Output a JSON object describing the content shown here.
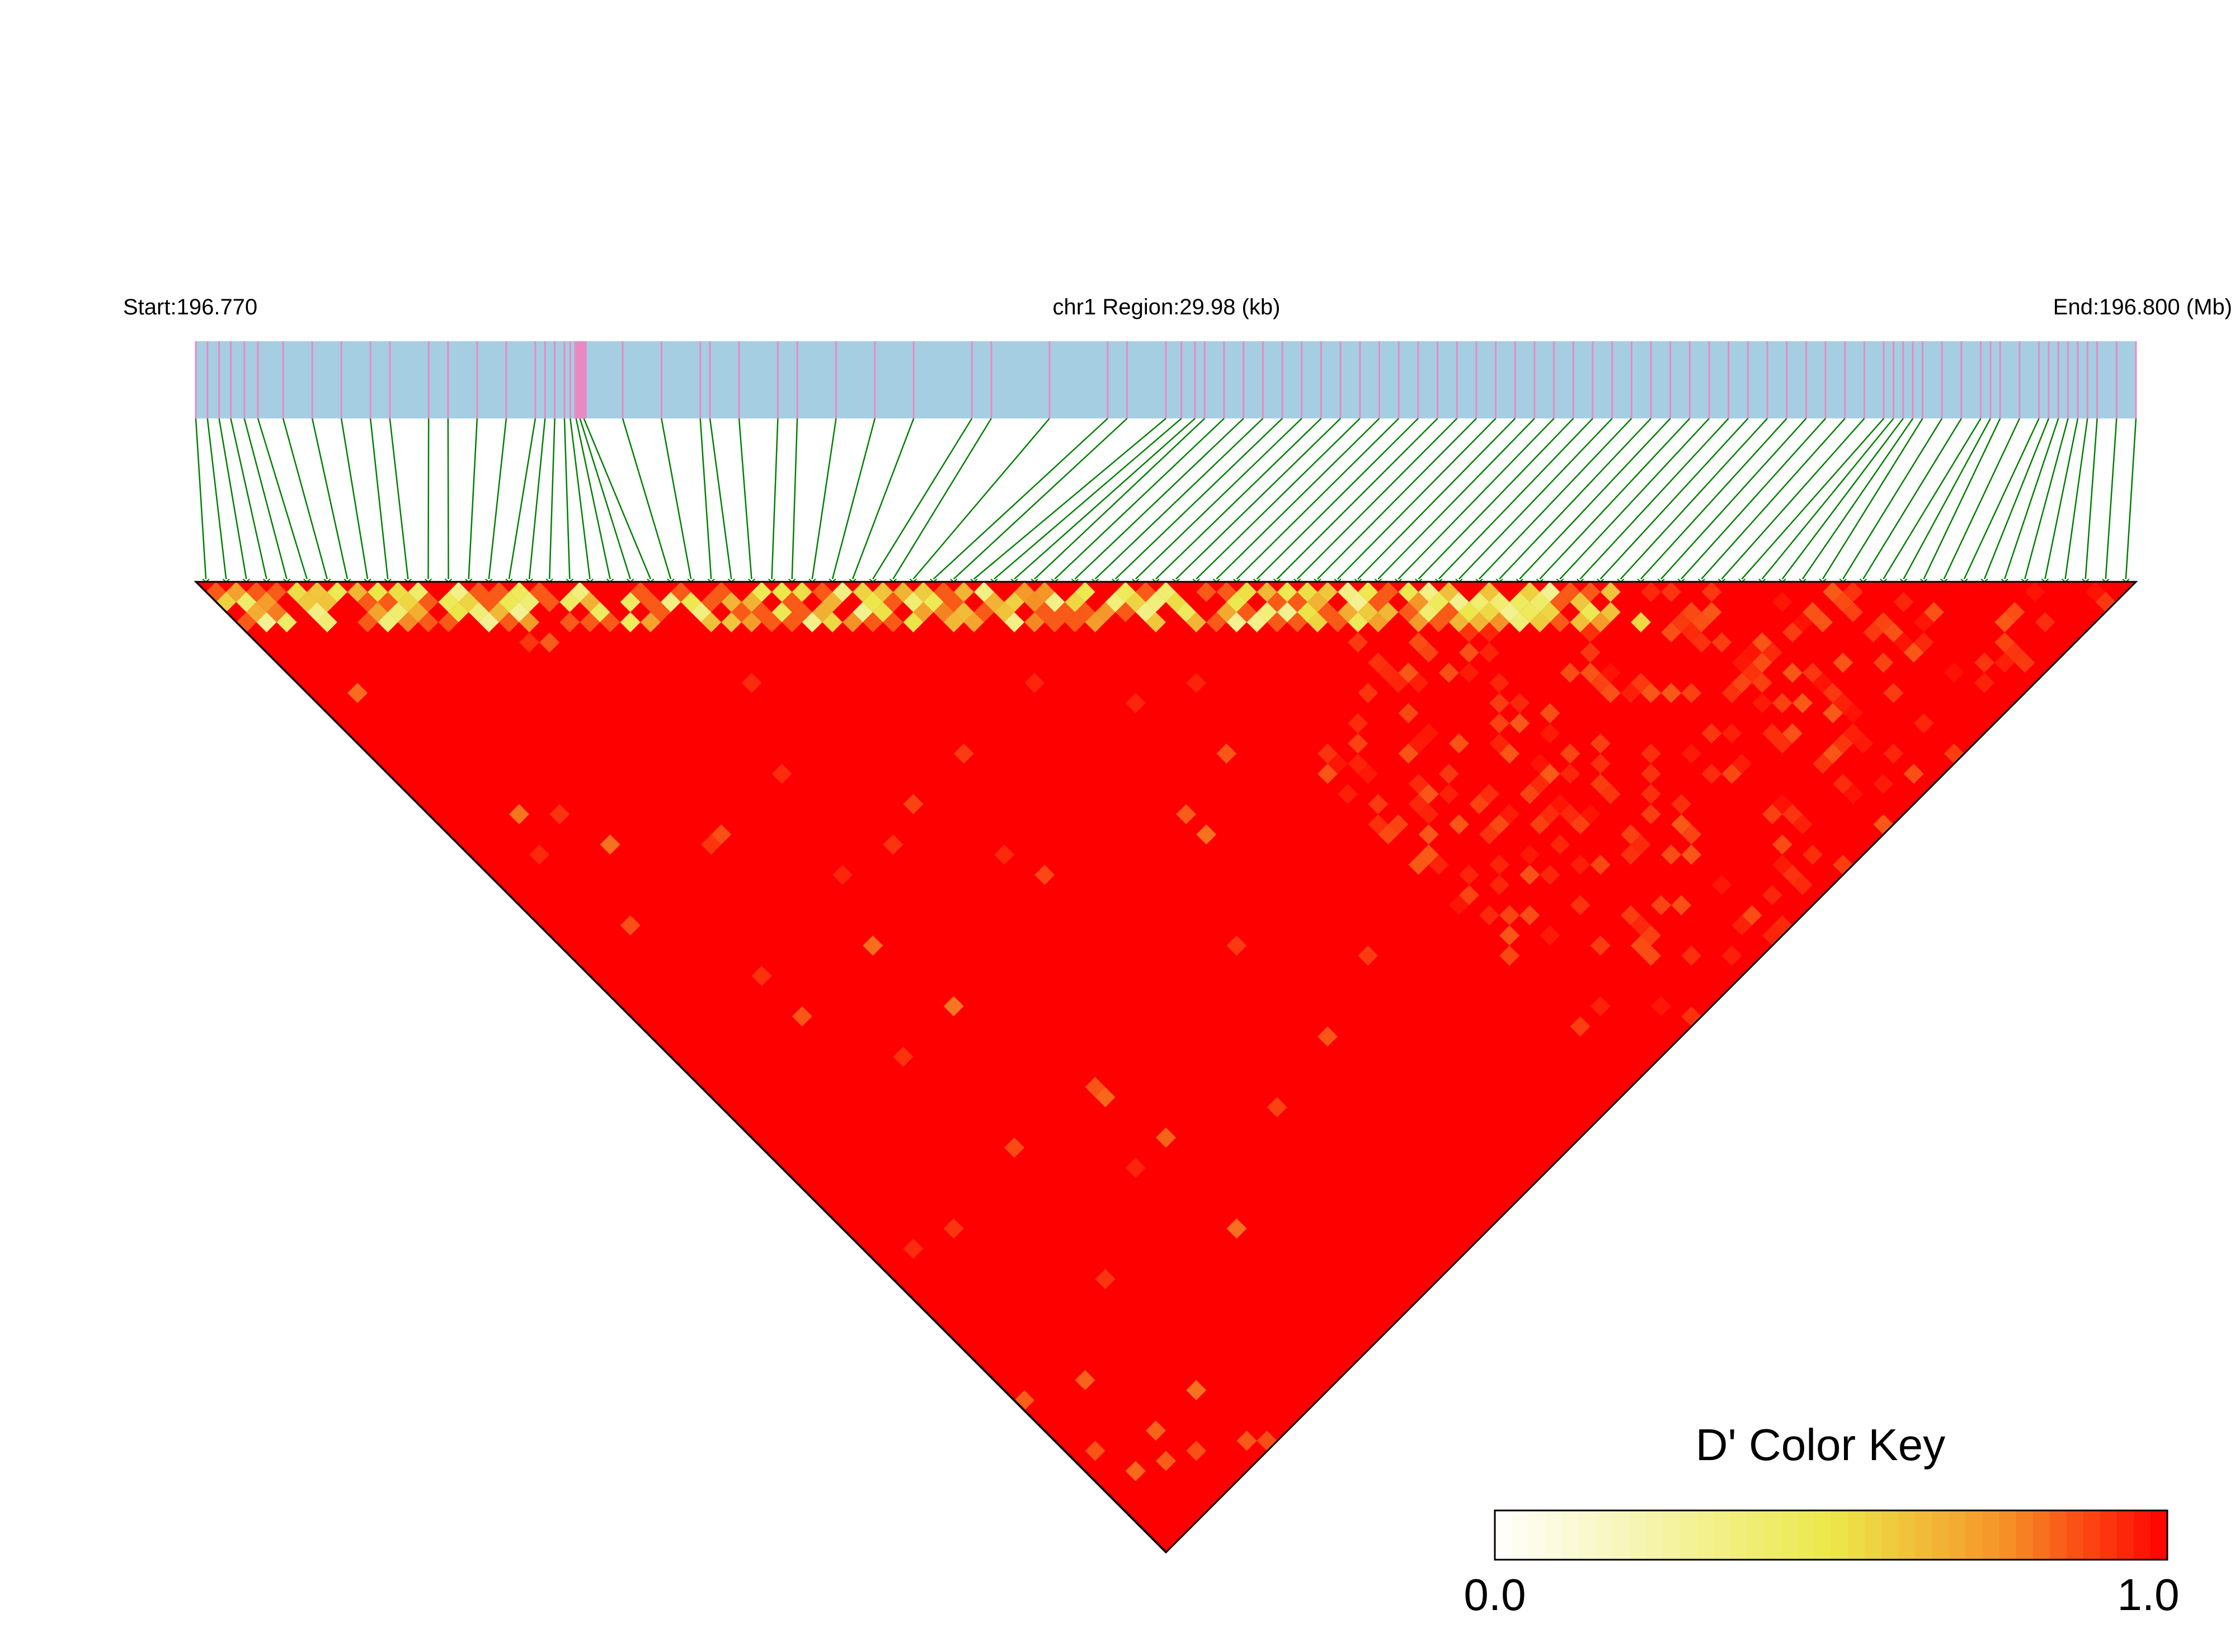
{
  "header": {
    "start_label": "Start:196.770",
    "region_label": "chr1 Region:29.98 (kb)",
    "end_label": "End:196.800 (Mb)"
  },
  "colors": {
    "track_background": "#a6cee3",
    "snp_tick": "#e78ac3",
    "connector": "#008000",
    "ld_high": "#ff0000",
    "ld_mid": "#f5a623",
    "ld_low": "#ffff99",
    "outline": "#000000"
  },
  "chart_data": {
    "type": "heatmap",
    "measure": "D'",
    "region": {
      "chromosome": "chr1",
      "start_mb": 196.77,
      "end_mb": 196.8,
      "length_kb": 29.98
    },
    "snp_positions_frac": [
      0,
      0.006,
      0.012,
      0.018,
      0.025,
      0.032,
      0.045,
      0.06,
      0.075,
      0.09,
      0.1,
      0.12,
      0.13,
      0.145,
      0.16,
      0.175,
      0.18,
      0.185,
      0.19,
      0.193,
      0.196,
      0.198,
      0.2,
      0.22,
      0.24,
      0.26,
      0.265,
      0.28,
      0.3,
      0.31,
      0.33,
      0.35,
      0.37,
      0.4,
      0.41,
      0.44,
      0.47,
      0.48,
      0.5,
      0.508,
      0.515,
      0.52,
      0.53,
      0.54,
      0.55,
      0.56,
      0.57,
      0.58,
      0.59,
      0.6,
      0.61,
      0.62,
      0.63,
      0.64,
      0.65,
      0.66,
      0.67,
      0.68,
      0.69,
      0.7,
      0.71,
      0.72,
      0.73,
      0.74,
      0.75,
      0.76,
      0.77,
      0.78,
      0.79,
      0.8,
      0.81,
      0.82,
      0.83,
      0.84,
      0.85,
      0.86,
      0.87,
      0.875,
      0.88,
      0.885,
      0.89,
      0.9,
      0.91,
      0.92,
      0.925,
      0.93,
      0.94,
      0.95,
      0.955,
      0.96,
      0.965,
      0.97,
      0.975,
      0.98,
      0.99,
      1.0
    ],
    "dense_cluster_frac": 0.198,
    "ld_summary": {
      "background_d_prime": 1.0,
      "near_diagonal_low_band": {
        "d_prime_min": 0.3,
        "d_prime_max": 0.8
      },
      "mixed_block": {
        "d_prime_min": 0.85,
        "d_prime_max": 0.97
      }
    },
    "legend": {
      "title": "D' Color Key",
      "min_label": "0.0",
      "max_label": "1.0",
      "range": [
        0.0,
        1.0
      ],
      "steps": 40,
      "placement": "bottom-right"
    }
  }
}
